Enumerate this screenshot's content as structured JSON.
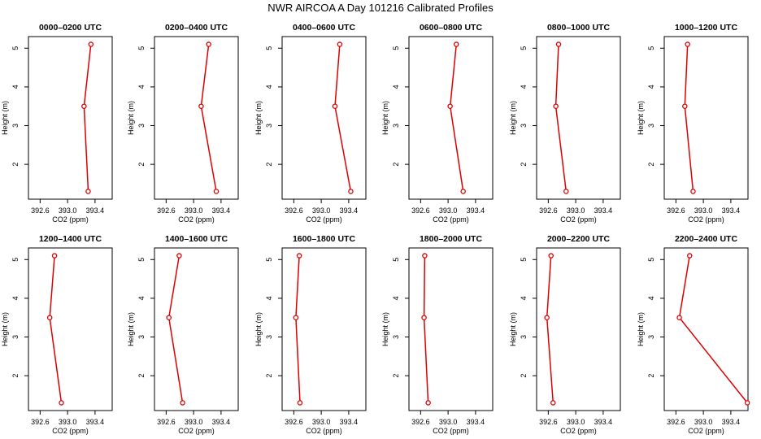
{
  "title": "NWR AIRCOA A  Day 101216  Calibrated Profiles",
  "colors": {
    "series": "#dd0000",
    "axis": "#000000",
    "background": "#ffffff"
  },
  "chart_data": [
    {
      "type": "line",
      "title": "0000–0200 UTC",
      "xlabel": "CO2 (ppm)",
      "ylabel": "Height (m)",
      "x": [
        393.3,
        393.24,
        393.34
      ],
      "y": [
        1.3,
        3.5,
        5.1
      ],
      "xlim": [
        392.43,
        393.65
      ],
      "ylim": [
        1.1,
        5.3
      ],
      "xticks": [
        392.6,
        393.0,
        393.4
      ],
      "xtick_labels": [
        "392.6",
        "393.0",
        "393.4"
      ],
      "yticks": [
        2,
        3,
        4,
        5
      ],
      "ytick_labels": [
        "2",
        "3",
        "4",
        "5"
      ]
    },
    {
      "type": "line",
      "title": "0200–0400 UTC",
      "xlabel": "CO2 (ppm)",
      "ylabel": "Height (m)",
      "x": [
        393.33,
        393.11,
        393.22
      ],
      "y": [
        1.3,
        3.5,
        5.1
      ],
      "xlim": [
        392.43,
        393.65
      ],
      "ylim": [
        1.1,
        5.3
      ],
      "xticks": [
        392.6,
        393.0,
        393.4
      ],
      "xtick_labels": [
        "392.6",
        "393.0",
        "393.4"
      ],
      "yticks": [
        2,
        3,
        4,
        5
      ],
      "ytick_labels": [
        "2",
        "3",
        "4",
        "5"
      ]
    },
    {
      "type": "line",
      "title": "0400–0600 UTC",
      "xlabel": "CO2 (ppm)",
      "ylabel": "Height (m)",
      "x": [
        393.43,
        393.2,
        393.27
      ],
      "y": [
        1.3,
        3.5,
        5.1
      ],
      "xlim": [
        392.43,
        393.65
      ],
      "ylim": [
        1.1,
        5.3
      ],
      "xticks": [
        392.6,
        393.0,
        393.4
      ],
      "xtick_labels": [
        "392.6",
        "393.0",
        "393.4"
      ],
      "yticks": [
        2,
        3,
        4,
        5
      ],
      "ytick_labels": [
        "2",
        "3",
        "4",
        "5"
      ]
    },
    {
      "type": "line",
      "title": "0600–0800 UTC",
      "xlabel": "CO2 (ppm)",
      "ylabel": "Height (m)",
      "x": [
        393.22,
        393.03,
        393.12
      ],
      "y": [
        1.3,
        3.5,
        5.1
      ],
      "xlim": [
        392.43,
        393.65
      ],
      "ylim": [
        1.1,
        5.3
      ],
      "xticks": [
        392.6,
        393.0,
        393.4
      ],
      "xtick_labels": [
        "392.6",
        "393.0",
        "393.4"
      ],
      "yticks": [
        2,
        3,
        4,
        5
      ],
      "ytick_labels": [
        "2",
        "3",
        "4",
        "5"
      ]
    },
    {
      "type": "line",
      "title": "0800–1000 UTC",
      "xlabel": "CO2 (ppm)",
      "ylabel": "Height (m)",
      "x": [
        392.86,
        392.71,
        392.75
      ],
      "y": [
        1.3,
        3.5,
        5.1
      ],
      "xlim": [
        392.43,
        393.65
      ],
      "ylim": [
        1.1,
        5.3
      ],
      "xticks": [
        392.6,
        393.0,
        393.4
      ],
      "xtick_labels": [
        "392.6",
        "393.0",
        "393.4"
      ],
      "yticks": [
        2,
        3,
        4,
        5
      ],
      "ytick_labels": [
        "2",
        "3",
        "4",
        "5"
      ]
    },
    {
      "type": "line",
      "title": "1000–1200 UTC",
      "xlabel": "CO2 (ppm)",
      "ylabel": "Height (m)",
      "x": [
        392.85,
        392.73,
        392.77
      ],
      "y": [
        1.3,
        3.5,
        5.1
      ],
      "xlim": [
        392.43,
        393.65
      ],
      "ylim": [
        1.1,
        5.3
      ],
      "xticks": [
        392.6,
        393.0,
        393.4
      ],
      "xtick_labels": [
        "392.6",
        "393.0",
        "393.4"
      ],
      "yticks": [
        2,
        3,
        4,
        5
      ],
      "ytick_labels": [
        "2",
        "3",
        "4",
        "5"
      ]
    },
    {
      "type": "line",
      "title": "1200–1400 UTC",
      "xlabel": "CO2 (ppm)",
      "ylabel": "Height (m)",
      "x": [
        392.91,
        392.74,
        392.81
      ],
      "y": [
        1.3,
        3.5,
        5.1
      ],
      "xlim": [
        392.43,
        393.65
      ],
      "ylim": [
        1.1,
        5.3
      ],
      "xticks": [
        392.6,
        393.0,
        393.4
      ],
      "xtick_labels": [
        "392.6",
        "393.0",
        "393.4"
      ],
      "yticks": [
        2,
        3,
        4,
        5
      ],
      "ytick_labels": [
        "2",
        "3",
        "4",
        "5"
      ]
    },
    {
      "type": "line",
      "title": "1400–1600 UTC",
      "xlabel": "CO2 (ppm)",
      "ylabel": "Height (m)",
      "x": [
        392.84,
        392.64,
        392.79
      ],
      "y": [
        1.3,
        3.5,
        5.1
      ],
      "xlim": [
        392.43,
        393.65
      ],
      "ylim": [
        1.1,
        5.3
      ],
      "xticks": [
        392.6,
        393.0,
        393.4
      ],
      "xtick_labels": [
        "392.6",
        "393.0",
        "393.4"
      ],
      "yticks": [
        2,
        3,
        4,
        5
      ],
      "ytick_labels": [
        "2",
        "3",
        "4",
        "5"
      ]
    },
    {
      "type": "line",
      "title": "1600–1800 UTC",
      "xlabel": "CO2 (ppm)",
      "ylabel": "Height (m)",
      "x": [
        392.69,
        392.63,
        392.68
      ],
      "y": [
        1.3,
        3.5,
        5.1
      ],
      "xlim": [
        392.43,
        393.65
      ],
      "ylim": [
        1.1,
        5.3
      ],
      "xticks": [
        392.6,
        393.0,
        393.4
      ],
      "xtick_labels": [
        "392.6",
        "393.0",
        "393.4"
      ],
      "yticks": [
        2,
        3,
        4,
        5
      ],
      "ytick_labels": [
        "2",
        "3",
        "4",
        "5"
      ]
    },
    {
      "type": "line",
      "title": "1800–2000 UTC",
      "xlabel": "CO2 (ppm)",
      "ylabel": "Height (m)",
      "x": [
        392.71,
        392.65,
        392.66
      ],
      "y": [
        1.3,
        3.5,
        5.1
      ],
      "xlim": [
        392.43,
        393.65
      ],
      "ylim": [
        1.1,
        5.3
      ],
      "xticks": [
        392.6,
        393.0,
        393.4
      ],
      "xtick_labels": [
        "392.6",
        "393.0",
        "393.4"
      ],
      "yticks": [
        2,
        3,
        4,
        5
      ],
      "ytick_labels": [
        "2",
        "3",
        "4",
        "5"
      ]
    },
    {
      "type": "line",
      "title": "2000–2200 UTC",
      "xlabel": "CO2 (ppm)",
      "ylabel": "Height (m)",
      "x": [
        392.67,
        392.58,
        392.64
      ],
      "y": [
        1.3,
        3.5,
        5.1
      ],
      "xlim": [
        392.43,
        393.65
      ],
      "ylim": [
        1.1,
        5.3
      ],
      "xticks": [
        392.6,
        393.0,
        393.4
      ],
      "xtick_labels": [
        "392.6",
        "393.0",
        "393.4"
      ],
      "yticks": [
        2,
        3,
        4,
        5
      ],
      "ytick_labels": [
        "2",
        "3",
        "4",
        "5"
      ]
    },
    {
      "type": "line",
      "title": "2200–2400 UTC",
      "xlabel": "CO2 (ppm)",
      "ylabel": "Height (m)",
      "x": [
        393.64,
        392.65,
        392.8
      ],
      "y": [
        1.3,
        3.5,
        5.1
      ],
      "xlim": [
        392.43,
        393.65
      ],
      "ylim": [
        1.1,
        5.3
      ],
      "xticks": [
        392.6,
        393.0,
        393.4
      ],
      "xtick_labels": [
        "392.6",
        "393.0",
        "393.4"
      ],
      "yticks": [
        2,
        3,
        4,
        5
      ],
      "ytick_labels": [
        "2",
        "3",
        "4",
        "5"
      ]
    }
  ]
}
